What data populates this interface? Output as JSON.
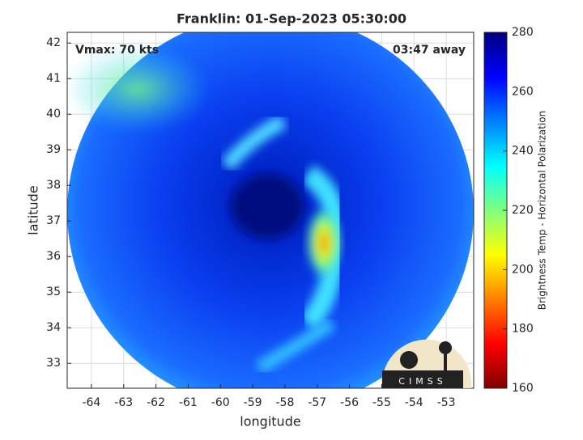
{
  "chart_data": {
    "type": "image",
    "title": "Franklin: 01-Sep-2023 05:30:00",
    "x_label": "longitude",
    "y_label": "latitude",
    "annotations": [
      "Vmax: 70 kts",
      "03:47 away"
    ],
    "logo": "CIMSS",
    "xlim": [
      -64.75,
      -52.15
    ],
    "xticks": [
      -64,
      -63,
      -62,
      -61,
      -60,
      -59,
      -58,
      -57,
      -56,
      -55,
      -54,
      -53
    ],
    "ylim": [
      32.3,
      42.3
    ],
    "yticks": [
      33,
      34,
      35,
      36,
      37,
      38,
      39,
      40,
      41,
      42
    ],
    "grid": true,
    "colorbar": {
      "label": "Brightness Temp - Horizontal Polarization",
      "colormap": "jet",
      "clim": [
        160,
        280
      ],
      "ticks": [
        160,
        180,
        200,
        220,
        240,
        260,
        280
      ]
    }
  }
}
